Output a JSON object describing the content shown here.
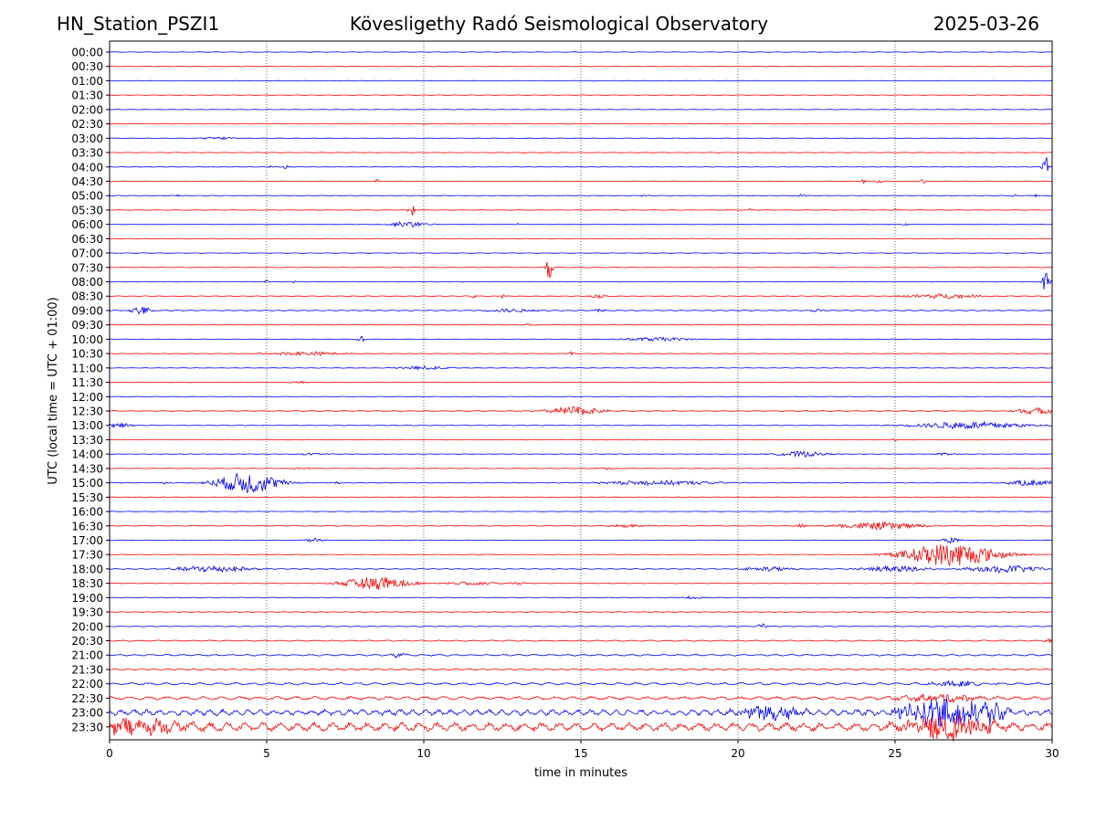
{
  "header": {
    "station": "HN_Station_PSZI1",
    "observatory": "Kövesligethy Radó Seismological Observatory",
    "date": "2025-03-26"
  },
  "chart_data": {
    "type": "line",
    "title": "Kövesligethy Radó Seismological Observatory",
    "xlabel": "time in minutes",
    "ylabel": "UTC (local time = UTC + 01:00)",
    "xlim": [
      0,
      30
    ],
    "xticks": [
      "0",
      "5",
      "10",
      "15",
      "20",
      "25",
      "30"
    ],
    "vertical_gridlines_at": [
      5,
      10,
      15,
      20,
      25
    ],
    "series_colors": [
      "#0000ff",
      "#ff0000"
    ],
    "color_rule": "alternating rows, full hours blue, half hours red",
    "rows": [
      {
        "label": "00:00",
        "noise": 0.3,
        "events": []
      },
      {
        "label": "00:30",
        "noise": 0.3,
        "events": []
      },
      {
        "label": "01:00",
        "noise": 0.3,
        "events": []
      },
      {
        "label": "01:30",
        "noise": 0.3,
        "events": []
      },
      {
        "label": "02:00",
        "noise": 0.3,
        "events": []
      },
      {
        "label": "02:30",
        "noise": 0.3,
        "events": [
          {
            "t": 10.0,
            "amp": 1.0,
            "dur": 0.1
          }
        ]
      },
      {
        "label": "03:00",
        "noise": 0.3,
        "events": [
          {
            "t": 3.5,
            "amp": 1.5,
            "dur": 0.7
          }
        ]
      },
      {
        "label": "03:30",
        "noise": 0.3,
        "events": []
      },
      {
        "label": "04:00",
        "noise": 0.3,
        "events": [
          {
            "t": 5.1,
            "amp": 1.5,
            "dur": 0.1
          },
          {
            "t": 5.6,
            "amp": 2.5,
            "dur": 0.1
          },
          {
            "t": 29.8,
            "amp": 14,
            "dur": 0.12
          }
        ]
      },
      {
        "label": "04:30",
        "noise": 0.3,
        "events": [
          {
            "t": 8.5,
            "amp": 2.5,
            "dur": 0.1
          },
          {
            "t": 24.0,
            "amp": 2,
            "dur": 0.1
          },
          {
            "t": 24.5,
            "amp": 2,
            "dur": 0.1
          },
          {
            "t": 25.9,
            "amp": 4,
            "dur": 0.1
          }
        ]
      },
      {
        "label": "05:00",
        "noise": 0.3,
        "events": [
          {
            "t": 2.2,
            "amp": 1.5,
            "dur": 0.1
          },
          {
            "t": 17.0,
            "amp": 1,
            "dur": 0.2
          },
          {
            "t": 22.0,
            "amp": 1.5,
            "dur": 0.2
          },
          {
            "t": 28.8,
            "amp": 2,
            "dur": 0.1
          },
          {
            "t": 29.5,
            "amp": 1.5,
            "dur": 0.1
          }
        ]
      },
      {
        "label": "05:30",
        "noise": 0.3,
        "events": [
          {
            "t": 9.6,
            "amp": 10,
            "dur": 0.1
          },
          {
            "t": 20.4,
            "amp": 1.5,
            "dur": 0.1
          },
          {
            "t": 25.0,
            "amp": 1.5,
            "dur": 0.1
          }
        ]
      },
      {
        "label": "06:00",
        "noise": 0.3,
        "events": [
          {
            "t": 9.5,
            "amp": 3,
            "dur": 0.8
          },
          {
            "t": 13.0,
            "amp": 1.5,
            "dur": 0.1
          },
          {
            "t": 25.3,
            "amp": 1.5,
            "dur": 0.1
          }
        ]
      },
      {
        "label": "06:30",
        "noise": 0.4,
        "events": []
      },
      {
        "label": "07:00",
        "noise": 0.3,
        "events": []
      },
      {
        "label": "07:30",
        "noise": 0.3,
        "events": [
          {
            "t": 14.0,
            "amp": 14,
            "dur": 0.12
          }
        ]
      },
      {
        "label": "08:00",
        "noise": 0.3,
        "events": [
          {
            "t": 5.0,
            "amp": 2,
            "dur": 0.1
          },
          {
            "t": 5.9,
            "amp": 1.5,
            "dur": 0.1
          },
          {
            "t": 29.8,
            "amp": 12,
            "dur": 0.15
          }
        ]
      },
      {
        "label": "08:30",
        "noise": 0.4,
        "events": [
          {
            "t": 11.6,
            "amp": 2,
            "dur": 0.1
          },
          {
            "t": 12.5,
            "amp": 2,
            "dur": 0.1
          },
          {
            "t": 15.5,
            "amp": 2,
            "dur": 0.4
          },
          {
            "t": 26.5,
            "amp": 2.5,
            "dur": 1.6
          }
        ]
      },
      {
        "label": "09:00",
        "noise": 0.5,
        "events": [
          {
            "t": 1.0,
            "amp": 5,
            "dur": 0.4
          },
          {
            "t": 12.8,
            "amp": 2,
            "dur": 1.0
          },
          {
            "t": 15.6,
            "amp": 2,
            "dur": 0.2
          },
          {
            "t": 22.5,
            "amp": 1.5,
            "dur": 0.3
          }
        ]
      },
      {
        "label": "09:30",
        "noise": 0.3,
        "events": [
          {
            "t": 13.3,
            "amp": 1.5,
            "dur": 0.1
          }
        ]
      },
      {
        "label": "10:00",
        "noise": 0.3,
        "events": [
          {
            "t": 8.0,
            "amp": 3,
            "dur": 0.15
          },
          {
            "t": 17.4,
            "amp": 2,
            "dur": 1.4
          }
        ]
      },
      {
        "label": "10:30",
        "noise": 0.3,
        "events": [
          {
            "t": 6.3,
            "amp": 2,
            "dur": 1.6
          },
          {
            "t": 14.7,
            "amp": 2.5,
            "dur": 0.1
          }
        ]
      },
      {
        "label": "11:00",
        "noise": 0.3,
        "events": [
          {
            "t": 10.0,
            "amp": 2,
            "dur": 1.0
          }
        ]
      },
      {
        "label": "11:30",
        "noise": 0.3,
        "events": [
          {
            "t": 6.0,
            "amp": 1.2,
            "dur": 0.4
          }
        ]
      },
      {
        "label": "12:00",
        "noise": 0.3,
        "events": []
      },
      {
        "label": "12:30",
        "noise": 0.4,
        "events": [
          {
            "t": 14.8,
            "amp": 5,
            "dur": 1.0
          },
          {
            "t": 29.5,
            "amp": 3.5,
            "dur": 0.9
          }
        ]
      },
      {
        "label": "13:00",
        "noise": 0.4,
        "events": [
          {
            "t": 0.3,
            "amp": 2.5,
            "dur": 0.5
          },
          {
            "t": 27.4,
            "amp": 4,
            "dur": 2.2
          }
        ]
      },
      {
        "label": "13:30",
        "noise": 0.3,
        "events": [
          {
            "t": 25.0,
            "amp": 1.5,
            "dur": 0.2
          }
        ]
      },
      {
        "label": "14:00",
        "noise": 0.3,
        "events": [
          {
            "t": 6.5,
            "amp": 1.5,
            "dur": 0.5
          },
          {
            "t": 22.0,
            "amp": 3,
            "dur": 1.0
          },
          {
            "t": 26.5,
            "amp": 1.5,
            "dur": 0.4
          }
        ]
      },
      {
        "label": "14:30",
        "noise": 0.3,
        "events": [
          {
            "t": 6.0,
            "amp": 1,
            "dur": 0.6
          },
          {
            "t": 15.8,
            "amp": 1,
            "dur": 0.6
          }
        ]
      },
      {
        "label": "15:00",
        "noise": 0.4,
        "events": [
          {
            "t": 4.4,
            "amp": 12,
            "dur": 1.2
          },
          {
            "t": 1.8,
            "amp": 2,
            "dur": 0.2
          },
          {
            "t": 7.3,
            "amp": 2,
            "dur": 0.15
          },
          {
            "t": 17.5,
            "amp": 2.5,
            "dur": 2.4
          },
          {
            "t": 29.4,
            "amp": 3.5,
            "dur": 1.0
          }
        ]
      },
      {
        "label": "15:30",
        "noise": 0.3,
        "events": []
      },
      {
        "label": "16:00",
        "noise": 0.3,
        "events": []
      },
      {
        "label": "16:30",
        "noise": 0.4,
        "events": [
          {
            "t": 16.5,
            "amp": 1.5,
            "dur": 0.8
          },
          {
            "t": 24.5,
            "amp": 4,
            "dur": 1.6
          },
          {
            "t": 22.0,
            "amp": 2,
            "dur": 0.2
          }
        ]
      },
      {
        "label": "17:00",
        "noise": 0.3,
        "events": [
          {
            "t": 6.5,
            "amp": 3,
            "dur": 0.3
          },
          {
            "t": 26.8,
            "amp": 3,
            "dur": 0.4
          }
        ]
      },
      {
        "label": "17:30",
        "noise": 0.3,
        "events": [
          {
            "t": 26.8,
            "amp": 13,
            "dur": 1.8
          }
        ]
      },
      {
        "label": "18:00",
        "noise": 0.5,
        "events": [
          {
            "t": 3.3,
            "amp": 4,
            "dur": 1.4
          },
          {
            "t": 21.0,
            "amp": 2.5,
            "dur": 1.0
          },
          {
            "t": 25.0,
            "amp": 3.5,
            "dur": 1.2
          },
          {
            "t": 28.5,
            "amp": 4,
            "dur": 1.5
          }
        ]
      },
      {
        "label": "18:30",
        "noise": 0.4,
        "events": [
          {
            "t": 8.5,
            "amp": 7,
            "dur": 1.3
          },
          {
            "t": 11.5,
            "amp": 2,
            "dur": 1.0
          },
          {
            "t": 13.0,
            "amp": 1.5,
            "dur": 0.3
          }
        ]
      },
      {
        "label": "19:00",
        "noise": 0.4,
        "events": [
          {
            "t": 18.5,
            "amp": 1.5,
            "dur": 0.6
          }
        ]
      },
      {
        "label": "19:30",
        "noise": 0.4,
        "events": []
      },
      {
        "label": "20:00",
        "noise": 0.5,
        "events": [
          {
            "t": 20.8,
            "amp": 3,
            "dur": 0.2
          }
        ]
      },
      {
        "label": "20:30",
        "noise": 0.7,
        "events": [
          {
            "t": 29.9,
            "amp": 2,
            "dur": 0.2
          }
        ]
      },
      {
        "label": "21:00",
        "noise": 1.0,
        "events": [
          {
            "t": 9.2,
            "amp": 2.5,
            "dur": 0.3
          }
        ]
      },
      {
        "label": "21:30",
        "noise": 1.0,
        "events": []
      },
      {
        "label": "22:00",
        "noise": 1.4,
        "events": [
          {
            "t": 27.0,
            "amp": 3,
            "dur": 1.0
          }
        ]
      },
      {
        "label": "22:30",
        "noise": 2.0,
        "events": [
          {
            "t": 26.5,
            "amp": 4,
            "dur": 1.6
          }
        ]
      },
      {
        "label": "23:00",
        "noise": 3.5,
        "events": [
          {
            "t": 21.0,
            "amp": 8,
            "dur": 1.2
          },
          {
            "t": 26.5,
            "amp": 14,
            "dur": 1.8
          },
          {
            "t": 27.8,
            "amp": 10,
            "dur": 1.0
          }
        ]
      },
      {
        "label": "23:30",
        "noise": 5.0,
        "events": [
          {
            "t": 0.8,
            "amp": 8,
            "dur": 2.0
          },
          {
            "t": 26.7,
            "amp": 14,
            "dur": 1.6
          }
        ]
      }
    ]
  }
}
